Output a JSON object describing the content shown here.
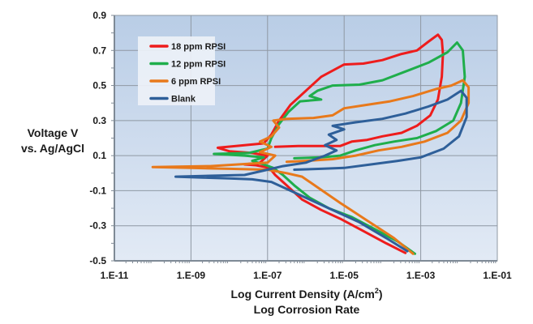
{
  "chart_data": {
    "type": "line",
    "title": "",
    "xlabel": "Log Current Density (A/cm²)",
    "xlabel_line2": "Log Corrosion Rate",
    "xlabel_parts": {
      "pre": "Log Current Density (A/cm",
      "sup": "2",
      "post": ")"
    },
    "ylabel": [
      "Voltage V",
      "vs. Ag/AgCl"
    ],
    "xscale": "log",
    "xlim": [
      1e-11,
      0.1
    ],
    "ylim": [
      -0.5,
      0.9
    ],
    "grid": true,
    "legend_position": "top-left",
    "x_ticks": [
      {
        "value": -11,
        "label": "1.E-11"
      },
      {
        "value": -9,
        "label": "1.E-09"
      },
      {
        "value": -7,
        "label": "1.E-07"
      },
      {
        "value": -5,
        "label": "1.E-05"
      },
      {
        "value": -3,
        "label": "1.E-03"
      },
      {
        "value": -1,
        "label": "1.E-01"
      }
    ],
    "y_ticks": [
      {
        "value": 0.9,
        "label": "0.9"
      },
      {
        "value": 0.7,
        "label": "0.7"
      },
      {
        "value": 0.5,
        "label": "0.5"
      },
      {
        "value": 0.3,
        "label": "0.3"
      },
      {
        "value": 0.1,
        "label": "0.1"
      },
      {
        "value": -0.1,
        "label": "-0.1"
      },
      {
        "value": -0.3,
        "label": "-0.3"
      },
      {
        "value": -0.5,
        "label": "-0.5"
      }
    ],
    "x_data_note": "x values are log10 of current density (A/cm2)",
    "series": [
      {
        "name": "18 ppm RPSI",
        "color": "#ee1c1c",
        "points": [
          [
            -3.4,
            -0.455
          ],
          [
            -3.9,
            -0.4
          ],
          [
            -4.5,
            -0.33
          ],
          [
            -5.1,
            -0.26
          ],
          [
            -5.6,
            -0.21
          ],
          [
            -6.1,
            -0.15
          ],
          [
            -6.5,
            -0.07
          ],
          [
            -6.8,
            -0.01
          ],
          [
            -6.95,
            0.03
          ],
          [
            -7.3,
            0.045
          ],
          [
            -7.6,
            0.05
          ],
          [
            -7.2,
            0.06
          ],
          [
            -7.0,
            0.1
          ],
          [
            -7.4,
            0.115
          ],
          [
            -8.0,
            0.125
          ],
          [
            -8.3,
            0.145
          ],
          [
            -7.6,
            0.16
          ],
          [
            -7.1,
            0.17
          ],
          [
            -6.9,
            0.22
          ],
          [
            -6.7,
            0.3
          ],
          [
            -6.4,
            0.39
          ],
          [
            -6.0,
            0.47
          ],
          [
            -5.6,
            0.55
          ],
          [
            -5.0,
            0.62
          ],
          [
            -4.5,
            0.625
          ],
          [
            -4.0,
            0.645
          ],
          [
            -3.5,
            0.68
          ],
          [
            -3.1,
            0.7
          ],
          [
            -2.8,
            0.75
          ],
          [
            -2.55,
            0.79
          ],
          [
            -2.45,
            0.76
          ],
          [
            -2.42,
            0.68
          ],
          [
            -2.45,
            0.55
          ],
          [
            -2.55,
            0.42
          ],
          [
            -2.75,
            0.33
          ],
          [
            -3.1,
            0.27
          ],
          [
            -3.5,
            0.23
          ],
          [
            -4.0,
            0.21
          ],
          [
            -4.4,
            0.19
          ],
          [
            -4.8,
            0.18
          ],
          [
            -5.1,
            0.155
          ],
          [
            -5.6,
            0.155
          ],
          [
            -6.2,
            0.155
          ],
          [
            -6.8,
            0.15
          ]
        ]
      },
      {
        "name": "12 ppm RPSI",
        "color": "#1fae4b",
        "points": [
          [
            -3.15,
            -0.46
          ],
          [
            -3.6,
            -0.39
          ],
          [
            -4.2,
            -0.32
          ],
          [
            -4.8,
            -0.25
          ],
          [
            -5.4,
            -0.2
          ],
          [
            -5.9,
            -0.14
          ],
          [
            -6.3,
            -0.07
          ],
          [
            -6.6,
            -0.01
          ],
          [
            -6.85,
            0.03
          ],
          [
            -7.1,
            0.05
          ],
          [
            -7.4,
            0.07
          ],
          [
            -7.1,
            0.09
          ],
          [
            -7.6,
            0.1
          ],
          [
            -8.4,
            0.11
          ],
          [
            -7.5,
            0.115
          ],
          [
            -7.0,
            0.14
          ],
          [
            -6.9,
            0.2
          ],
          [
            -6.7,
            0.28
          ],
          [
            -6.45,
            0.35
          ],
          [
            -6.15,
            0.41
          ],
          [
            -5.6,
            0.42
          ],
          [
            -5.9,
            0.44
          ],
          [
            -5.7,
            0.47
          ],
          [
            -5.3,
            0.5
          ],
          [
            -4.6,
            0.505
          ],
          [
            -4.0,
            0.53
          ],
          [
            -3.4,
            0.58
          ],
          [
            -2.8,
            0.63
          ],
          [
            -2.3,
            0.69
          ],
          [
            -2.05,
            0.745
          ],
          [
            -1.9,
            0.7
          ],
          [
            -1.85,
            0.55
          ],
          [
            -1.95,
            0.4
          ],
          [
            -2.15,
            0.3
          ],
          [
            -2.6,
            0.24
          ],
          [
            -3.1,
            0.2
          ],
          [
            -3.7,
            0.18
          ],
          [
            -4.2,
            0.16
          ],
          [
            -4.7,
            0.13
          ],
          [
            -5.1,
            0.1
          ],
          [
            -5.6,
            0.09
          ],
          [
            -6.3,
            0.085
          ]
        ]
      },
      {
        "name": "6 ppm RPSI",
        "color": "#e8791b",
        "points": [
          [
            -3.2,
            -0.46
          ],
          [
            -3.7,
            -0.37
          ],
          [
            -4.4,
            -0.27
          ],
          [
            -5.1,
            -0.17
          ],
          [
            -5.7,
            -0.08
          ],
          [
            -6.1,
            -0.02
          ],
          [
            -6.5,
            0.0
          ],
          [
            -7.0,
            0.02
          ],
          [
            -8.0,
            0.025
          ],
          [
            -9.0,
            0.03
          ],
          [
            -10.0,
            0.035
          ],
          [
            -8.5,
            0.04
          ],
          [
            -7.0,
            0.06
          ],
          [
            -6.8,
            0.1
          ],
          [
            -7.2,
            0.12
          ],
          [
            -6.9,
            0.15
          ],
          [
            -7.2,
            0.18
          ],
          [
            -6.9,
            0.21
          ],
          [
            -6.7,
            0.26
          ],
          [
            -6.85,
            0.3
          ],
          [
            -6.5,
            0.31
          ],
          [
            -5.8,
            0.315
          ],
          [
            -5.3,
            0.33
          ],
          [
            -5.0,
            0.37
          ],
          [
            -4.4,
            0.39
          ],
          [
            -3.8,
            0.41
          ],
          [
            -3.2,
            0.44
          ],
          [
            -2.6,
            0.48
          ],
          [
            -2.2,
            0.5
          ],
          [
            -1.9,
            0.53
          ],
          [
            -1.75,
            0.49
          ],
          [
            -1.75,
            0.4
          ],
          [
            -1.95,
            0.3
          ],
          [
            -2.3,
            0.23
          ],
          [
            -2.9,
            0.18
          ],
          [
            -3.5,
            0.15
          ],
          [
            -4.1,
            0.13
          ],
          [
            -4.7,
            0.1
          ],
          [
            -5.3,
            0.08
          ],
          [
            -6.0,
            0.07
          ],
          [
            -6.5,
            0.065
          ]
        ]
      },
      {
        "name": "Blank",
        "color": "#2e5f99",
        "points": [
          [
            -3.35,
            -0.445
          ],
          [
            -3.9,
            -0.37
          ],
          [
            -4.6,
            -0.28
          ],
          [
            -5.4,
            -0.2
          ],
          [
            -6.0,
            -0.14
          ],
          [
            -6.5,
            -0.09
          ],
          [
            -6.9,
            -0.05
          ],
          [
            -7.4,
            -0.035
          ],
          [
            -8.0,
            -0.03
          ],
          [
            -8.7,
            -0.025
          ],
          [
            -9.4,
            -0.02
          ],
          [
            -8.5,
            -0.015
          ],
          [
            -7.6,
            -0.01
          ],
          [
            -7.0,
            0.02
          ],
          [
            -6.6,
            0.04
          ],
          [
            -6.0,
            0.06
          ],
          [
            -5.5,
            0.1
          ],
          [
            -5.2,
            0.13
          ],
          [
            -5.5,
            0.16
          ],
          [
            -5.2,
            0.19
          ],
          [
            -5.4,
            0.22
          ],
          [
            -5.0,
            0.25
          ],
          [
            -5.3,
            0.27
          ],
          [
            -4.7,
            0.29
          ],
          [
            -4.0,
            0.31
          ],
          [
            -3.4,
            0.34
          ],
          [
            -2.8,
            0.38
          ],
          [
            -2.3,
            0.42
          ],
          [
            -1.95,
            0.47
          ],
          [
            -1.8,
            0.43
          ],
          [
            -1.8,
            0.32
          ],
          [
            -2.0,
            0.21
          ],
          [
            -2.4,
            0.14
          ],
          [
            -3.0,
            0.09
          ],
          [
            -3.6,
            0.07
          ],
          [
            -4.3,
            0.05
          ],
          [
            -5.0,
            0.03
          ],
          [
            -5.6,
            0.025
          ],
          [
            -6.3,
            0.02
          ]
        ]
      }
    ]
  }
}
